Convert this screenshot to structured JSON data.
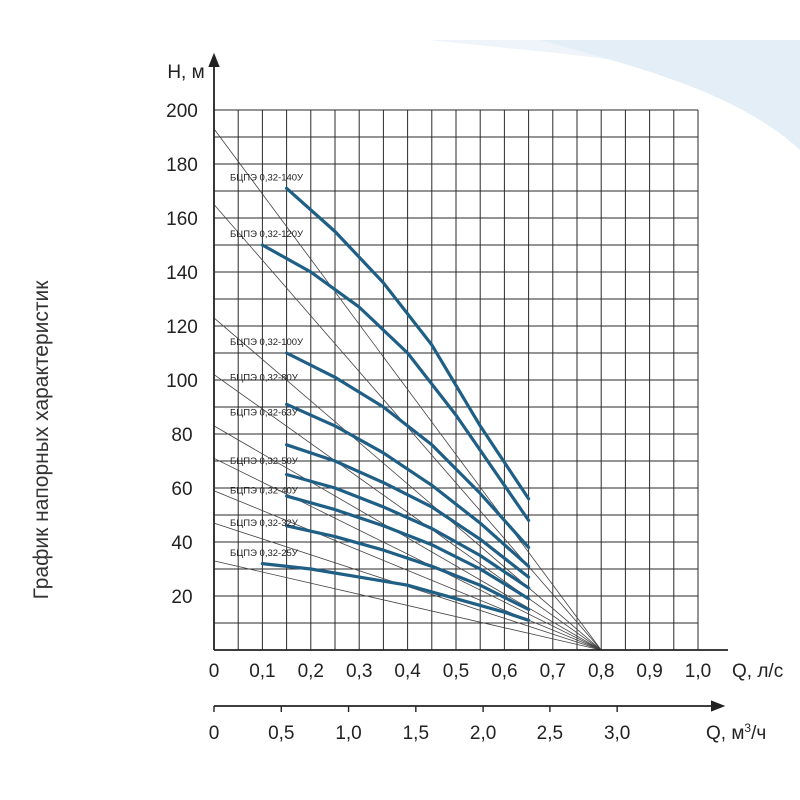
{
  "chart_data": {
    "type": "line",
    "title": "График напорных характеристик",
    "ylabel": "H, м",
    "xlabel": "Q, л/с",
    "x2label_prefix": "Q, м",
    "x2label_sup": "3",
    "x2label_suffix": "/ч",
    "xlim": [
      0,
      1.0
    ],
    "ylim": [
      0,
      200
    ],
    "grid": true,
    "x_ticks": [
      "0",
      "0,1",
      "0,2",
      "0,3",
      "0,4",
      "0,5",
      "0,6",
      "0,7",
      "0,8",
      "0,9",
      "1,0"
    ],
    "y_ticks": [
      "20",
      "40",
      "60",
      "80",
      "100",
      "120",
      "140",
      "160",
      "180",
      "200"
    ],
    "x2_ticks": [
      {
        "label": "0",
        "q_ls": 0
      },
      {
        "label": "0,5",
        "q_ls": 0.139
      },
      {
        "label": "1,0",
        "q_ls": 0.278
      },
      {
        "label": "1,5",
        "q_ls": 0.417
      },
      {
        "label": "2,0",
        "q_ls": 0.556
      },
      {
        "label": "2,5",
        "q_ls": 0.694
      },
      {
        "label": "3,0",
        "q_ls": 0.833
      }
    ],
    "convergence_point": {
      "x": 0.8,
      "y": 0
    },
    "curve_color": "#1f5f86",
    "series": [
      {
        "name": "БЦПЭ 0,32-140У",
        "shutoff_head": 193,
        "label_y": 175,
        "points": [
          [
            0.15,
            171
          ],
          [
            0.25,
            155
          ],
          [
            0.35,
            136
          ],
          [
            0.45,
            113
          ],
          [
            0.55,
            83
          ],
          [
            0.65,
            56
          ]
        ]
      },
      {
        "name": "БЦПЭ 0,32-120У",
        "shutoff_head": 165,
        "label_y": 154,
        "points": [
          [
            0.1,
            150
          ],
          [
            0.2,
            140
          ],
          [
            0.3,
            127
          ],
          [
            0.4,
            110
          ],
          [
            0.5,
            87
          ],
          [
            0.6,
            61
          ],
          [
            0.65,
            48
          ]
        ]
      },
      {
        "name": "БЦПЭ 0,32-100У",
        "shutoff_head": 123,
        "label_y": 114,
        "points": [
          [
            0.15,
            110
          ],
          [
            0.25,
            101
          ],
          [
            0.35,
            90
          ],
          [
            0.45,
            76
          ],
          [
            0.55,
            58
          ],
          [
            0.65,
            38
          ]
        ]
      },
      {
        "name": "БЦПЭ 0,32-80У",
        "shutoff_head": 102,
        "label_y": 101,
        "points": [
          [
            0.15,
            91
          ],
          [
            0.25,
            83
          ],
          [
            0.35,
            73
          ],
          [
            0.45,
            61
          ],
          [
            0.55,
            47
          ],
          [
            0.65,
            31
          ]
        ]
      },
      {
        "name": "БЦПЭ 0,32-63У",
        "shutoff_head": 83,
        "label_y": 88,
        "points": [
          [
            0.15,
            76
          ],
          [
            0.25,
            70
          ],
          [
            0.35,
            62
          ],
          [
            0.45,
            53
          ],
          [
            0.55,
            41
          ],
          [
            0.65,
            27
          ]
        ]
      },
      {
        "name": "БЦПЭ 0,32-50У",
        "shutoff_head": 71,
        "label_y": 70,
        "points": [
          [
            0.15,
            65
          ],
          [
            0.25,
            60
          ],
          [
            0.35,
            53
          ],
          [
            0.45,
            45
          ],
          [
            0.55,
            35
          ],
          [
            0.65,
            23
          ]
        ]
      },
      {
        "name": "БЦПЭ 0,32-40У",
        "shutoff_head": 59,
        "label_y": 59,
        "points": [
          [
            0.15,
            57
          ],
          [
            0.25,
            52
          ],
          [
            0.35,
            46
          ],
          [
            0.45,
            39
          ],
          [
            0.55,
            30
          ],
          [
            0.65,
            19
          ]
        ]
      },
      {
        "name": "БЦПЭ 0,32-32У",
        "shutoff_head": 47,
        "label_y": 47,
        "points": [
          [
            0.15,
            46
          ],
          [
            0.25,
            42
          ],
          [
            0.35,
            37
          ],
          [
            0.45,
            31
          ],
          [
            0.55,
            24
          ],
          [
            0.65,
            15
          ]
        ]
      },
      {
        "name": "БЦПЭ 0,32-25У",
        "shutoff_head": 33,
        "label_y": 36,
        "points": [
          [
            0.1,
            32
          ],
          [
            0.2,
            30
          ],
          [
            0.3,
            27
          ],
          [
            0.4,
            24
          ],
          [
            0.5,
            19
          ],
          [
            0.6,
            14
          ],
          [
            0.65,
            11
          ]
        ]
      }
    ]
  }
}
